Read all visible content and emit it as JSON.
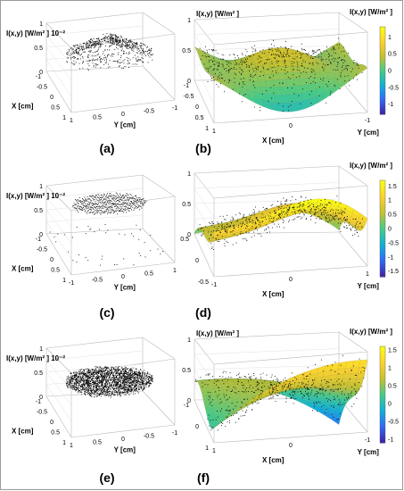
{
  "chart_data": [
    {
      "panel": "(a)",
      "type": "scatter3d",
      "zlabel": "I(x,y) [W/m² ] 10⁻²",
      "xlabel": "X [cm]",
      "ylabel": "Y [cm]",
      "z_ticks": [
        "1",
        "0.5",
        "0"
      ],
      "x_ticks": [
        "-1",
        "-0.5",
        "0",
        "0.5",
        "1"
      ],
      "y_ticks": [
        "1",
        "0.5",
        "0",
        "-0.5",
        "-1"
      ],
      "shape": "cloud-disc-top"
    },
    {
      "panel": "(b)",
      "type": "surface3d",
      "zlabel": "I(x,y) [W/m² ]",
      "xlabel": "X [cm]",
      "ylabel": "Y [cm]",
      "z_ticks": [
        "1",
        "0.5",
        "0"
      ],
      "x_ticks": [
        "-1",
        "-0.5",
        "0",
        "0.5",
        "1"
      ],
      "y_ticks": [
        "1",
        "0",
        "-1"
      ],
      "colorbar_title": "I(x,y) [W/m² ]",
      "colorbar_ticks": [
        "1",
        "0.5",
        "0",
        "-0.5",
        "-1"
      ],
      "colorbar_range": [
        -1.3,
        1.3
      ],
      "shape": "saddle-green"
    },
    {
      "panel": "(c)",
      "type": "scatter3d",
      "zlabel": "I(x,y) [W/m² ] 10⁻²",
      "xlabel": "X [cm]",
      "ylabel": "Y [cm]",
      "z_ticks": [
        "1",
        "0.5",
        "0"
      ],
      "x_ticks": [
        "-1",
        "-0.5",
        "0",
        "0.5",
        "1"
      ],
      "y_ticks": [
        "-1",
        "-0.5",
        "0",
        "0.5",
        "1"
      ],
      "shape": "grid-disc"
    },
    {
      "panel": "(d)",
      "type": "surface3d",
      "zlabel": "",
      "xlabel": "X [cm]",
      "ylabel": "Y [cm]",
      "z_ticks": [
        "1",
        "0.5",
        "0"
      ],
      "x_ticks": [
        "0.5",
        "0",
        "-0.5"
      ],
      "y_ticks": [
        "-1",
        "0",
        "1"
      ],
      "colorbar_title": "I(x,y) [W/m² ]",
      "colorbar_ticks": [
        "1.5",
        "1",
        "0.5",
        "0",
        "-0.5",
        "-1",
        "-1.5"
      ],
      "colorbar_range": [
        -1.7,
        1.7
      ],
      "shape": "saddle-yellow"
    },
    {
      "panel": "(e)",
      "type": "scatter3d",
      "zlabel": "I(x,y) [W/m² ] 10⁻²",
      "xlabel": "X [cm]",
      "ylabel": "Y [cm]",
      "z_ticks": [
        "1",
        "0.5",
        "0"
      ],
      "x_ticks": [
        "-1",
        "-0.5",
        "0",
        "0.5",
        "1"
      ],
      "y_ticks": [
        "1",
        "0.5",
        "0",
        "-0.5",
        "-1"
      ],
      "shape": "dense-disc"
    },
    {
      "panel": "(f)",
      "type": "surface3d",
      "zlabel": "I(x,y) [W/m² ]",
      "xlabel": "X [cm]",
      "ylabel": "Y [cm]",
      "z_ticks": [
        "1",
        "0.5",
        "0"
      ],
      "x_ticks": [
        "-1",
        "0",
        "1"
      ],
      "y_ticks": [
        "1",
        "0",
        "-1"
      ],
      "colorbar_title": "I(x,y) [W/m² ]",
      "colorbar_ticks": [
        "1.5",
        "1",
        "0.5",
        "0",
        "-0.5",
        "-1"
      ],
      "colorbar_range": [
        -1.1,
        1.6
      ],
      "shape": "saddle-cyan"
    }
  ],
  "colormap": [
    "#3e26a8",
    "#2f6ff5",
    "#12b1d6",
    "#48cb86",
    "#c6c130",
    "#fbd12f",
    "#f9fb15"
  ]
}
